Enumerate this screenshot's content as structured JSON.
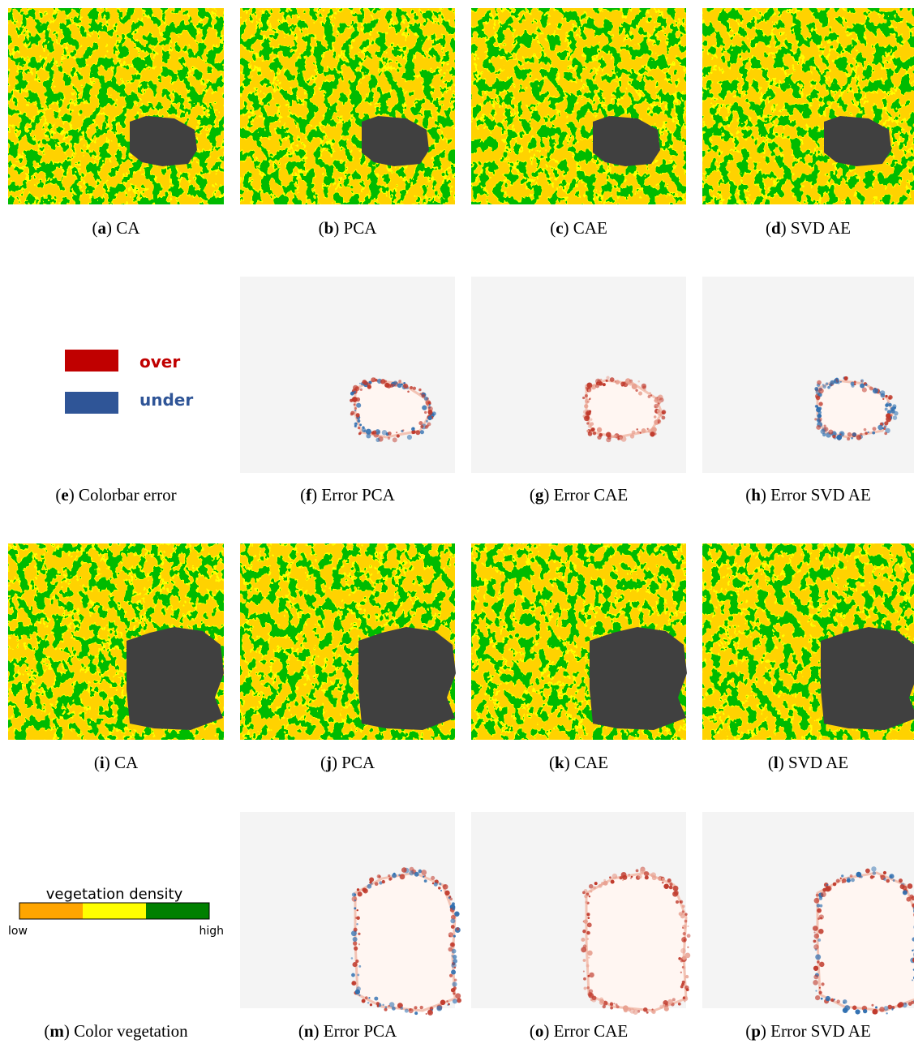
{
  "panels": [
    {
      "open": "(",
      "letter": "a",
      "rest": ") CA"
    },
    {
      "open": "(",
      "letter": "b",
      "rest": ") PCA"
    },
    {
      "open": "(",
      "letter": "c",
      "rest": ") CAE"
    },
    {
      "open": "(",
      "letter": "d",
      "rest": ") SVD AE"
    },
    {
      "open": "(",
      "letter": "e",
      "rest": ") Colorbar error"
    },
    {
      "open": "(",
      "letter": "f",
      "rest": ") Error PCA"
    },
    {
      "open": "(",
      "letter": "g",
      "rest": ") Error CAE"
    },
    {
      "open": "(",
      "letter": "h",
      "rest": ") Error SVD AE"
    },
    {
      "open": "(",
      "letter": "i",
      "rest": ") CA"
    },
    {
      "open": "(",
      "letter": "j",
      "rest": ") PCA"
    },
    {
      "open": "(",
      "letter": "k",
      "rest": ") CAE"
    },
    {
      "open": "(",
      "letter": "l",
      "rest": ") SVD AE"
    },
    {
      "open": "(",
      "letter": "m",
      "rest": ") Color vegetation"
    },
    {
      "open": "(",
      "letter": "n",
      "rest": ") Error PCA"
    },
    {
      "open": "(",
      "letter": "o",
      "rest": ") Error CAE"
    },
    {
      "open": "(",
      "letter": "p",
      "rest": ") Error SVD AE"
    }
  ],
  "legend_error": {
    "over": "over",
    "under": "under"
  },
  "legend_vegetation": {
    "title": "vegetation density",
    "low": "low",
    "high": "high"
  }
}
